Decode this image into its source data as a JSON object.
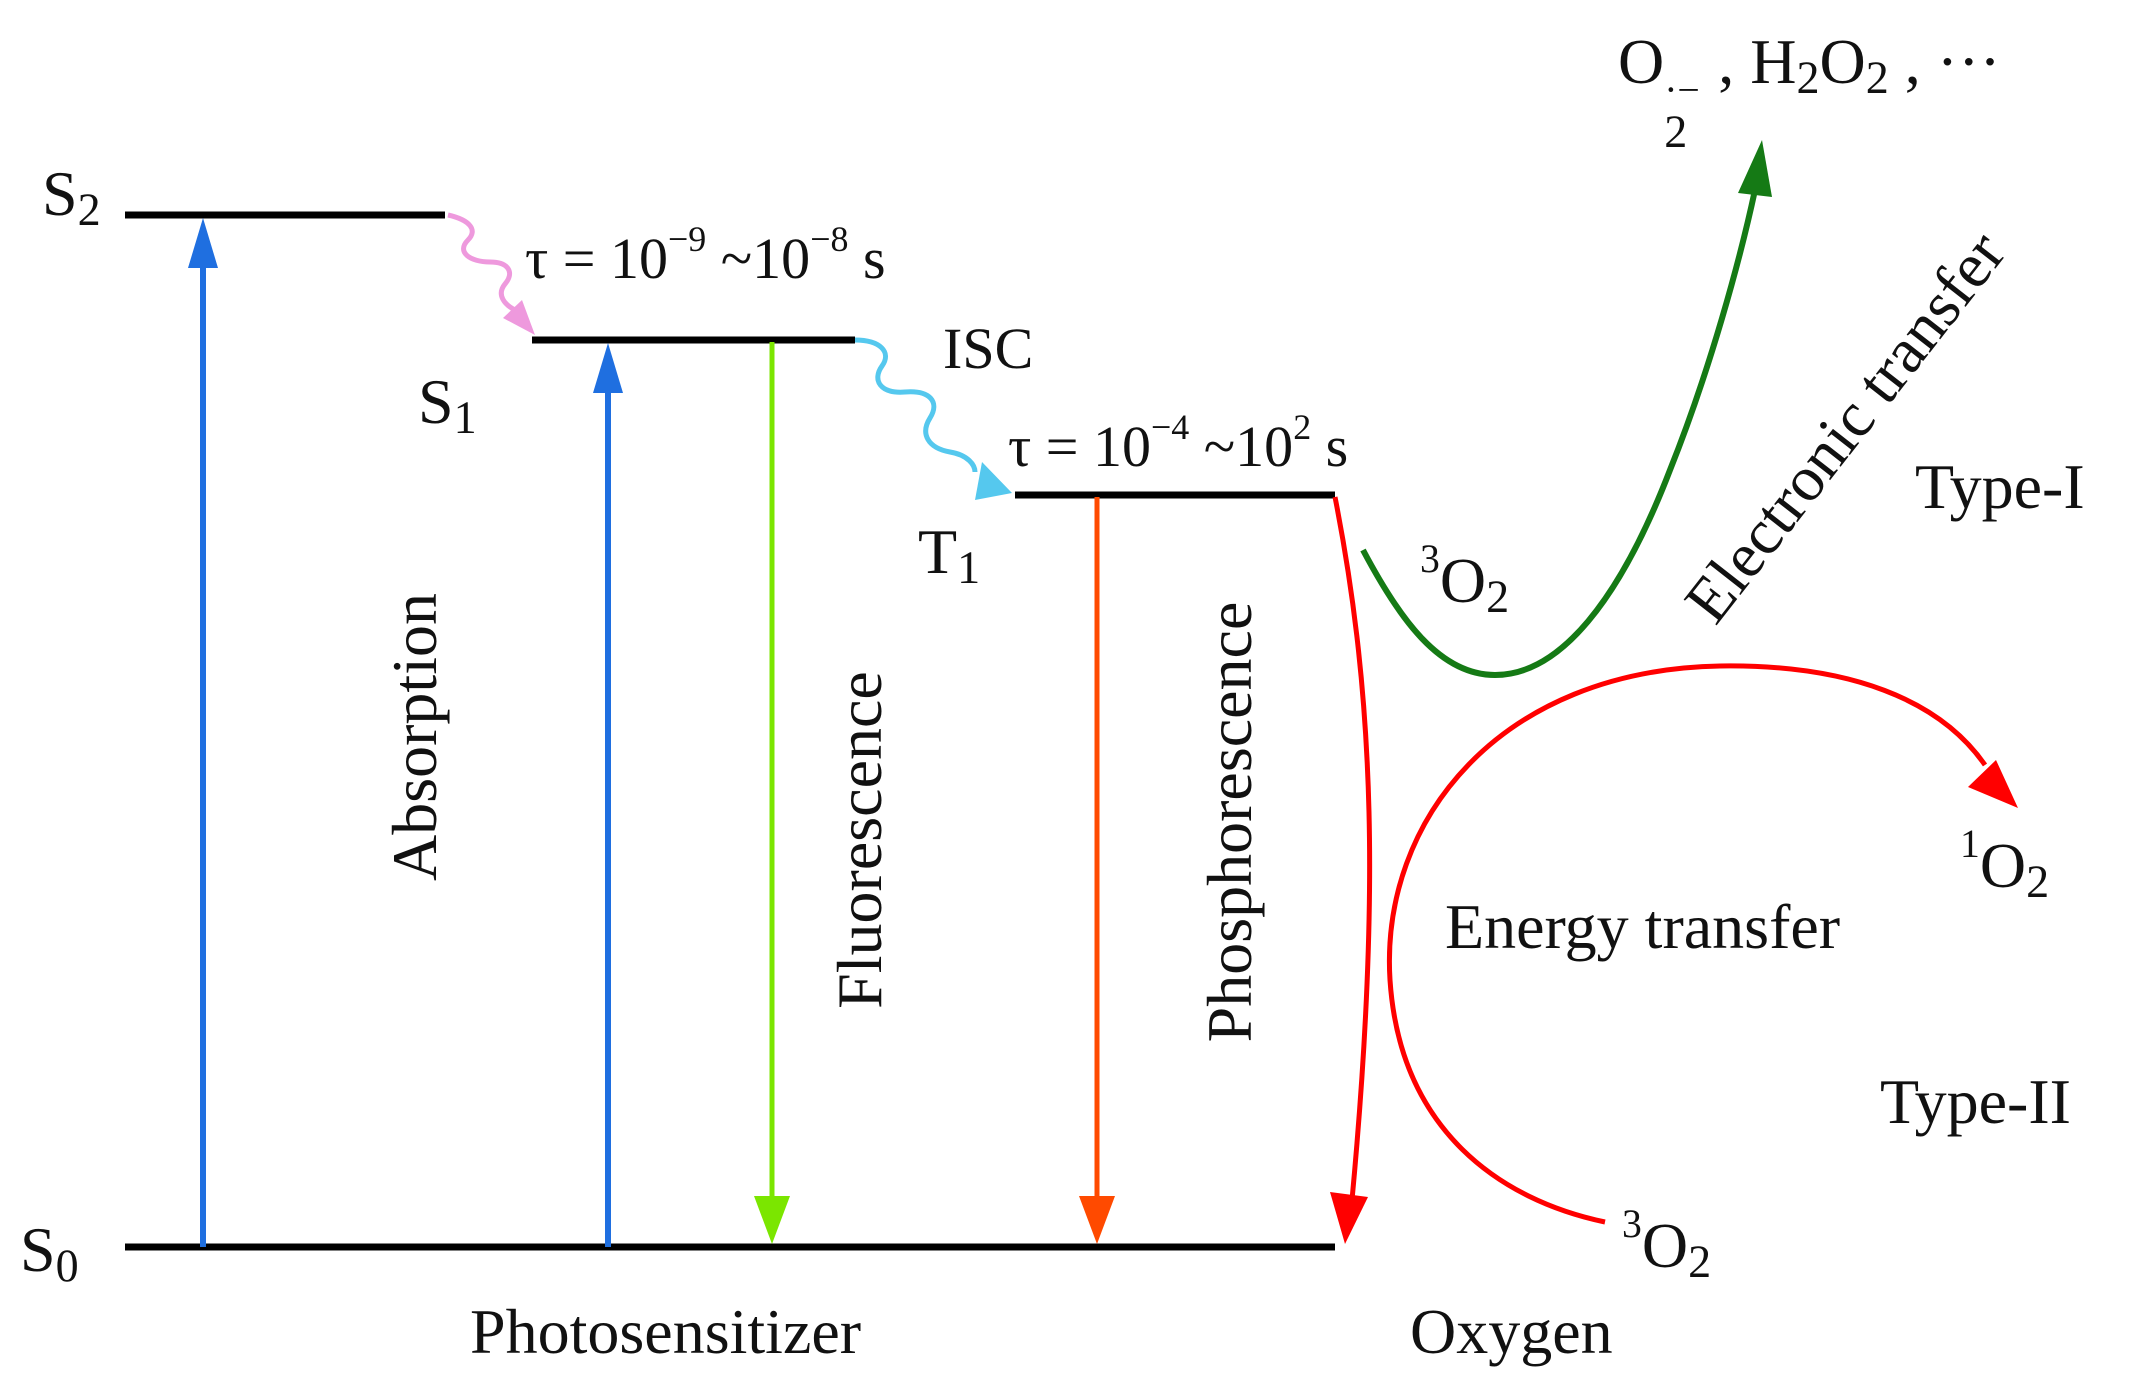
{
  "states": {
    "s2": {
      "label": "S",
      "sub": "2"
    },
    "s1": {
      "label": "S",
      "sub": "1"
    },
    "t1": {
      "label": "T",
      "sub": "1"
    },
    "s0": {
      "label": "S",
      "sub": "0"
    }
  },
  "tau1": {
    "prefix": "τ = 10",
    "exp1": "−9",
    "mid": " ~10",
    "exp2": "−8",
    "unit": " s"
  },
  "tau2": {
    "prefix": "τ = 10",
    "exp1": "−4",
    "mid": " ~10",
    "exp2": "2",
    "unit": " s"
  },
  "isc_label": "ISC",
  "process_labels": {
    "absorption": "Absorption",
    "fluorescence": "Fluorescence",
    "phosphorescence": "Phosphorescence",
    "electronic_transfer": "Electronic transfer",
    "energy_transfer": "Energy transfer"
  },
  "types": {
    "type1": "Type-I",
    "type2": "Type-II"
  },
  "bottom_labels": {
    "photosensitizer": "Photosensitizer",
    "oxygen": "Oxygen"
  },
  "oxygen_species": {
    "triplet_a": {
      "sup": "3",
      "base": "O",
      "sub": "2"
    },
    "triplet_b": {
      "sup": "3",
      "base": "O",
      "sub": "2"
    },
    "singlet": {
      "sup": "1",
      "base": "O",
      "sub": "2"
    }
  },
  "ros": {
    "superoxide": {
      "base": "O",
      "sub": "2",
      "sup": "·−"
    },
    "sep1": " , ",
    "peroxide": {
      "h": "H",
      "h_sub": "2",
      "o": "O",
      "o_sub": "2"
    },
    "sep2": " ,  ···"
  },
  "colors": {
    "level": "#000000",
    "absorption_arrow": "#1f6fe0",
    "fluorescence_arrow": "#7be600",
    "phosphorescence_arrow": "#ff4a00",
    "ic_arrow": "#ee99dd",
    "isc_arrow": "#55c8ee",
    "electron_transfer": "#157a15",
    "energy_transfer": "#ff0000"
  }
}
